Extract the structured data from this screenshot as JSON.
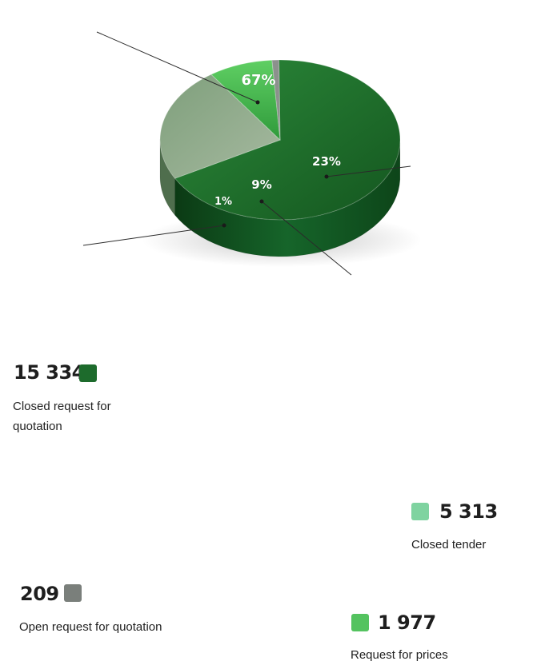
{
  "chart_data": {
    "type": "pie",
    "style": "3d",
    "slices": [
      {
        "label": "Closed request for quotation",
        "value": 15334,
        "value_text": "15 334",
        "percent": 67,
        "percent_text": "67%",
        "color": "#1d6b2c"
      },
      {
        "label": "Closed tender",
        "value": 5313,
        "value_text": "5 313",
        "percent": 23,
        "percent_text": "23%",
        "color": "#8ea58a",
        "swatch": "#7fd3a0"
      },
      {
        "label": "Request for prices",
        "value": 1977,
        "value_text": "1 977",
        "percent": 9,
        "percent_text": "9%",
        "color": "#3fae4a",
        "swatch": "#54c35f"
      },
      {
        "label": "Open request for quotation",
        "value": 209,
        "value_text": "209",
        "percent": 1,
        "percent_text": "1%",
        "color": "#8c918d",
        "swatch": "#7a7f7b"
      }
    ]
  }
}
